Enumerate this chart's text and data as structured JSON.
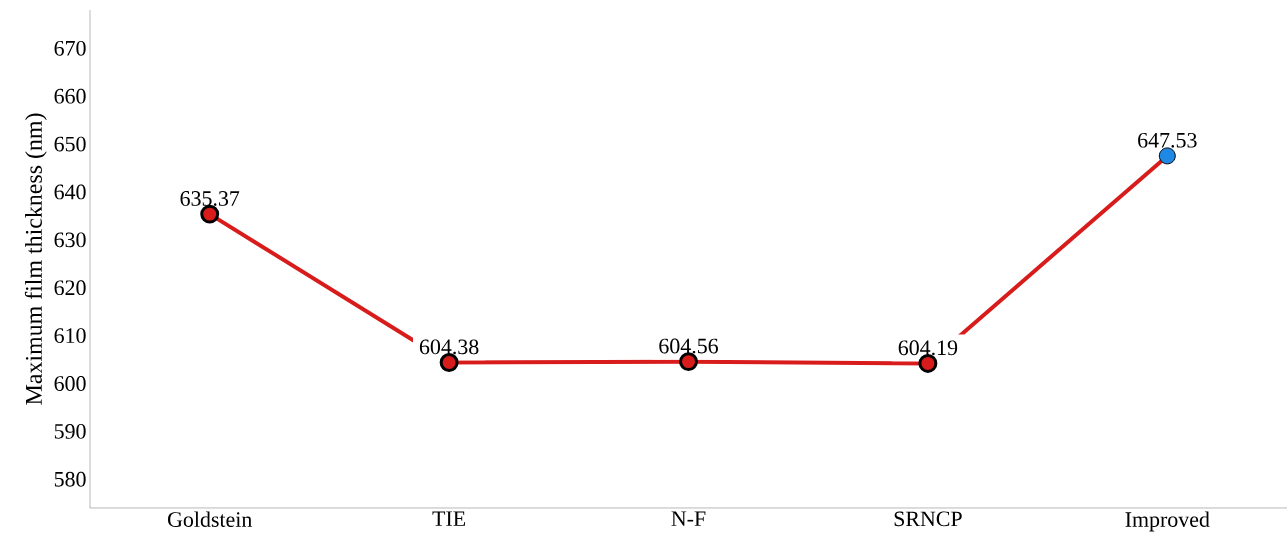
{
  "chart_data": {
    "type": "line",
    "ylabel": "Maximum film thickness (nm)",
    "categories": [
      "Goldstein",
      "TIE",
      "N-F",
      "SRNCP",
      "Improved"
    ],
    "values": [
      635.37,
      604.38,
      604.56,
      604.19,
      647.53
    ],
    "color": "#d81c1c",
    "colors": [
      "#d81c1c",
      "#d81c1c",
      "#d81c1c",
      "#d81c1c",
      "#1e88e5"
    ],
    "marker": "circle",
    "line_style": "solid",
    "data_labels": true,
    "ylim": [
      574,
      678
    ],
    "yticks": [
      580,
      590,
      600,
      610,
      620,
      630,
      640,
      650,
      660,
      670
    ],
    "grid": false
  }
}
